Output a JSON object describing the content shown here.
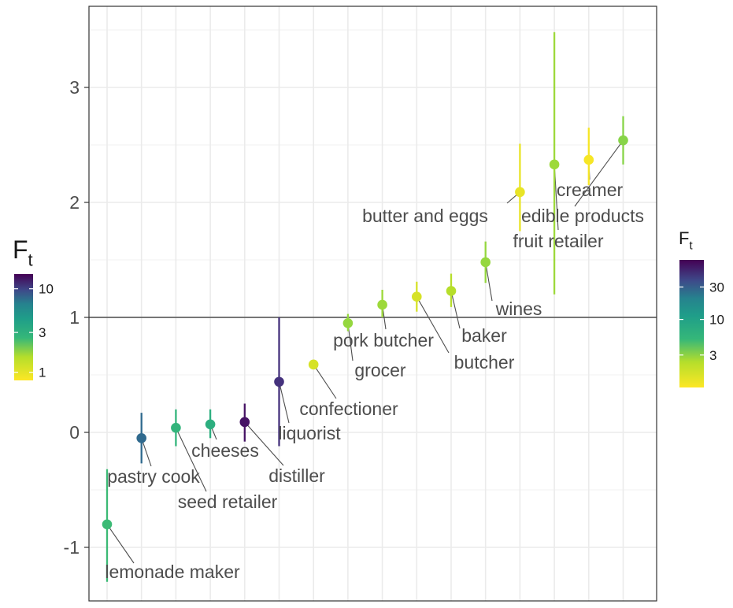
{
  "chart_data": {
    "type": "scatter",
    "subtype": "point-range with text labels",
    "ylim": [
      -1.55,
      3.7
    ],
    "yticks": [
      {
        "value": -1,
        "label": "-1"
      },
      {
        "value": 0,
        "label": "0"
      },
      {
        "value": 1,
        "label": "1"
      },
      {
        "value": 2,
        "label": "2"
      },
      {
        "value": 3,
        "label": "3"
      }
    ],
    "reference_line": 1,
    "grid": true,
    "x_positions": 16,
    "points": [
      {
        "label": "lemonade maker",
        "x": 1,
        "y": -0.8,
        "low": -1.3,
        "high": -0.32,
        "ft": 4.0
      },
      {
        "label": "pastry cook",
        "x": 2,
        "y": -0.05,
        "low": -0.27,
        "high": 0.17,
        "ft": 17.0
      },
      {
        "label": "seed retailer",
        "x": 3,
        "y": 0.04,
        "low": -0.12,
        "high": 0.2,
        "ft": 4.5
      },
      {
        "label": "cheeses",
        "x": 4,
        "y": 0.07,
        "low": -0.05,
        "high": 0.2,
        "ft": 5.0
      },
      {
        "label": "distiller",
        "x": 5,
        "y": 0.09,
        "low": -0.08,
        "high": 0.25,
        "ft": 60.0
      },
      {
        "label": "liquorist",
        "x": 6,
        "y": 0.44,
        "low": -0.12,
        "high": 1.0,
        "ft": 40.0
      },
      {
        "label": "confectioner",
        "x": 7,
        "y": 0.59,
        "low": 0.55,
        "high": 0.63,
        "ft": 1.3
      },
      {
        "label": "grocer",
        "x": 8,
        "y": 0.95,
        "low": 0.88,
        "high": 1.03,
        "ft": 2.0
      },
      {
        "label": "pork butcher",
        "x": 9,
        "y": 1.11,
        "low": 1.0,
        "high": 1.24,
        "ft": 1.9
      },
      {
        "label": "butcher",
        "x": 10,
        "y": 1.18,
        "low": 1.05,
        "high": 1.31,
        "ft": 1.3
      },
      {
        "label": "baker",
        "x": 11,
        "y": 1.23,
        "low": 1.09,
        "high": 1.38,
        "ft": 1.6
      },
      {
        "label": "wines",
        "x": 12,
        "y": 1.48,
        "low": 1.3,
        "high": 1.66,
        "ft": 2.0
      },
      {
        "label": "butter and eggs",
        "x": 13,
        "y": 2.09,
        "low": 1.75,
        "high": 2.51,
        "ft": 1.15
      },
      {
        "label": "fruit retailer",
        "x": 14,
        "y": 2.33,
        "low": 1.2,
        "high": 3.48,
        "ft": 1.9
      },
      {
        "label": "creamer",
        "x": 15,
        "y": 2.37,
        "low": 2.15,
        "high": 2.65,
        "ft": 1.05
      },
      {
        "label": "edible products",
        "x": 16,
        "y": 2.54,
        "low": 2.33,
        "high": 2.75,
        "ft": 2.2
      }
    ],
    "legends": [
      {
        "title_main": "F",
        "title_sub": "t",
        "ticks": [
          {
            "value": 1,
            "label": "1"
          },
          {
            "value": 3,
            "label": "3"
          },
          {
            "value": 10,
            "label": "10"
          }
        ],
        "range": [
          0.8,
          15
        ]
      },
      {
        "title_main": "F",
        "title_sub": "t",
        "ticks": [
          {
            "value": 3,
            "label": "3"
          },
          {
            "value": 10,
            "label": "10"
          },
          {
            "value": 30,
            "label": "30"
          }
        ],
        "range": [
          1,
          75
        ]
      }
    ],
    "colors": {
      "viridis": [
        "#440154",
        "#482878",
        "#3e4989",
        "#31688e",
        "#26828e",
        "#1f9e89",
        "#35b779",
        "#6ece58",
        "#b5de2b",
        "#fde725"
      ],
      "reference_line": "#4d4d4d",
      "panel_border": "#333333",
      "grid": "#ebebeb",
      "label_text": "#4d4d4d"
    }
  }
}
